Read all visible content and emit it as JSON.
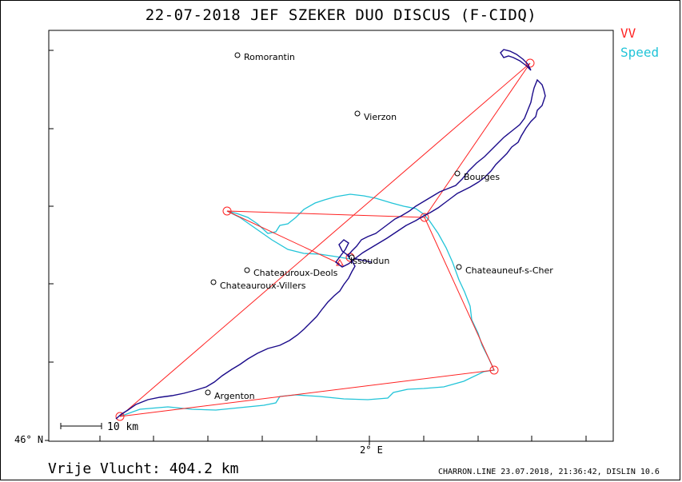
{
  "title": "22-07-2018   JEF SZEKER   DUO DISCUS (F-CIDQ)",
  "legend": {
    "vv": "VV",
    "speed": "Speed"
  },
  "colors": {
    "vv": "#ff2222",
    "speed": "#22c4d8",
    "track": "#1a0a8a"
  },
  "axes": {
    "lat_label": "46° N",
    "lon_label": "2° E"
  },
  "scale_label": "10 km",
  "distance_label": "Vrije Vlucht:  404.2 km",
  "footer": "CHARRON.LINE 23.07.2018, 21:36:42, DISLIN 10.6",
  "cities": [
    {
      "name": "Romorantin"
    },
    {
      "name": "Vierzon"
    },
    {
      "name": "Bourges"
    },
    {
      "name": "Issoudun"
    },
    {
      "name": "Chateauroux-Deols"
    },
    {
      "name": "Chateauroux-Villers"
    },
    {
      "name": "Chateauneuf-s-Cher"
    },
    {
      "name": "Argenton"
    }
  ],
  "turnpoints": [
    "start",
    "tp-northeast",
    "tp-west",
    "tp-east",
    "tp-southeast",
    "tp-southwest"
  ]
}
